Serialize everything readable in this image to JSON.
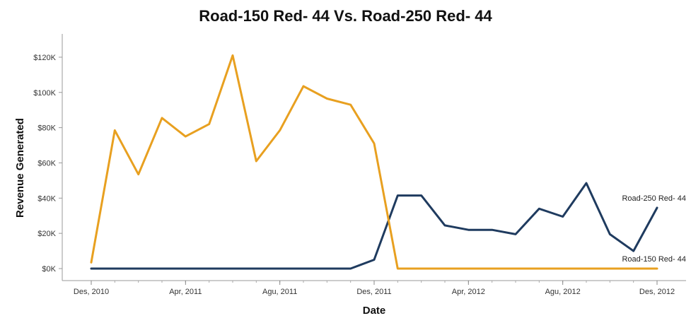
{
  "chart_data": {
    "type": "line",
    "title": "Road-150 Red- 44 Vs. Road-250 Red- 44",
    "xlabel": "Date",
    "ylabel": "Revenue Generated",
    "ylim": [
      0,
      130000
    ],
    "yticks": [
      0,
      20000,
      40000,
      60000,
      80000,
      100000,
      120000
    ],
    "ytick_labels": [
      "$0K",
      "$20K",
      "$40K",
      "$60K",
      "$80K",
      "$100K",
      "$120K"
    ],
    "xticks": [
      "2010-12",
      "2011-04",
      "2011-08",
      "2011-12",
      "2012-04",
      "2012-08",
      "2012-12"
    ],
    "xtick_labels": [
      "Des, 2010",
      "Apr, 2011",
      "Agu, 2011",
      "Des, 2011",
      "Apr, 2012",
      "Agu, 2012",
      "Des, 2012"
    ],
    "x": [
      "2010-12",
      "2011-01",
      "2011-02",
      "2011-03",
      "2011-04",
      "2011-05",
      "2011-06",
      "2011-07",
      "2011-08",
      "2011-09",
      "2011-10",
      "2011-11",
      "2011-12",
      "2012-01",
      "2012-02",
      "2012-03",
      "2012-04",
      "2012-05",
      "2012-06",
      "2012-07",
      "2012-08",
      "2012-09",
      "2012-10",
      "2012-11",
      "2012-12"
    ],
    "series": [
      {
        "name": "Road-150 Red- 44",
        "color": "#E8A020",
        "values": [
          3500,
          78500,
          53500,
          85500,
          75000,
          82000,
          121000,
          61000,
          78500,
          103500,
          96500,
          93000,
          71000,
          0,
          0,
          0,
          0,
          0,
          0,
          0,
          0,
          0,
          0,
          0,
          0
        ]
      },
      {
        "name": "Road-250 Red- 44",
        "color": "#1F3B5F",
        "values": [
          0,
          0,
          0,
          0,
          0,
          0,
          0,
          0,
          0,
          0,
          0,
          0,
          5000,
          41500,
          41500,
          24500,
          22000,
          22000,
          19500,
          34000,
          29500,
          48500,
          19500,
          10000,
          34500
        ]
      }
    ],
    "grid": false
  }
}
